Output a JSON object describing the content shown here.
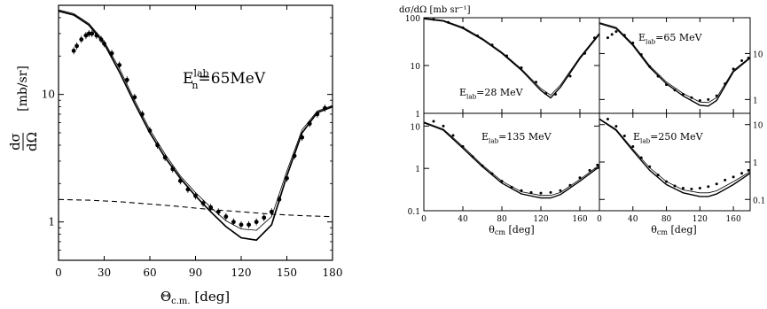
{
  "chart_data": [
    {
      "type": "scatter",
      "title": "",
      "annotation": {
        "e": "E",
        "sub": "n",
        "sup": "lab",
        "rest": "=65MeV"
      },
      "xlabel": {
        "theta": "Θ",
        "sub": "c.m.",
        "unit": "[deg]"
      },
      "ylabel": {
        "num": "dσ",
        "den": "dΩ",
        "unit": "[mb/sr]"
      },
      "xlim": [
        0,
        180
      ],
      "ylim": [
        0.5,
        50
      ],
      "yscale": "log",
      "xticks": [
        "0",
        "30",
        "60",
        "90",
        "120",
        "150",
        "180"
      ],
      "yticks": [
        {
          "v": 1,
          "label": "1"
        },
        {
          "v": 10,
          "label": "10"
        }
      ],
      "series": [
        {
          "style": "solid",
          "x": [
            0,
            10,
            20,
            30,
            40,
            50,
            60,
            70,
            80,
            90,
            100,
            110,
            120,
            130,
            140,
            150,
            160,
            170,
            180
          ],
          "y": [
            45,
            42,
            35,
            25,
            15,
            8.5,
            5,
            3.2,
            2.2,
            1.6,
            1.2,
            0.92,
            0.75,
            0.72,
            0.95,
            2.3,
            5,
            7.2,
            8
          ]
        },
        {
          "style": "thin",
          "x": [
            0,
            10,
            20,
            30,
            40,
            50,
            60,
            70,
            80,
            90,
            100,
            110,
            120,
            130,
            140,
            150,
            160,
            170,
            180
          ],
          "y": [
            46,
            43,
            36,
            26,
            16,
            9,
            5.3,
            3.4,
            2.3,
            1.7,
            1.3,
            1.02,
            0.88,
            0.86,
            1.1,
            2.5,
            5.3,
            7.4,
            8.2
          ]
        },
        {
          "style": "dashed",
          "x": [
            0,
            20,
            40,
            60,
            80,
            100,
            120,
            140,
            160,
            180
          ],
          "y": [
            1.5,
            1.48,
            1.44,
            1.38,
            1.32,
            1.25,
            1.2,
            1.15,
            1.12,
            1.1
          ]
        },
        {
          "style": "points",
          "x": [
            10,
            12,
            15,
            18,
            20,
            22,
            25,
            28,
            30,
            35,
            40,
            45,
            50,
            55,
            60,
            65,
            70,
            75,
            80,
            85,
            90,
            95,
            100,
            105,
            110,
            115,
            120,
            125,
            130,
            135,
            140,
            145,
            150,
            155,
            160,
            165,
            170,
            175
          ],
          "y": [
            22,
            24,
            27,
            29,
            30,
            30,
            29,
            27,
            25,
            21,
            17,
            13,
            9.5,
            7,
            5.2,
            4,
            3.2,
            2.6,
            2.1,
            1.8,
            1.6,
            1.4,
            1.3,
            1.2,
            1.1,
            1.0,
            0.95,
            0.95,
            1.0,
            1.08,
            1.2,
            1.5,
            2.2,
            3.3,
            4.6,
            5.9,
            7,
            7.8
          ]
        }
      ]
    },
    {
      "type": "scatter",
      "title": "dσ/dΩ [mb sr⁻¹]",
      "yscale": "log",
      "grid": false,
      "panels": [
        {
          "label": {
            "e": "E",
            "sub": "lab",
            "rest": "=28 MeV"
          },
          "position": "top-left",
          "xlim": [
            0,
            180
          ],
          "ylim": [
            1,
            100
          ],
          "yticks": [
            {
              "v": 1,
              "label": "1"
            },
            {
              "v": 10,
              "label": "10"
            },
            {
              "v": 100,
              "label": "100"
            }
          ],
          "series": [
            {
              "style": "solid",
              "x": [
                0,
                20,
                40,
                60,
                80,
                100,
                120,
                130,
                140,
                160,
                180
              ],
              "y": [
                95,
                85,
                60,
                35,
                18,
                8,
                3,
                2.1,
                3.5,
                14,
                45
              ]
            },
            {
              "style": "thin",
              "x": [
                0,
                20,
                40,
                60,
                80,
                100,
                120,
                130,
                140,
                160,
                180
              ],
              "y": [
                98,
                88,
                63,
                37,
                19,
                8.5,
                3.3,
                2.4,
                3.9,
                15,
                48
              ]
            },
            {
              "style": "points",
              "x": [
                10,
                25,
                40,
                55,
                70,
                85,
                100,
                115,
                125,
                135,
                150,
                165,
                175
              ],
              "y": [
                92,
                80,
                62,
                42,
                27,
                16,
                9,
                4.5,
                2.6,
                2.5,
                6,
                18,
                38
              ]
            }
          ]
        },
        {
          "label": {
            "e": "E",
            "sub": "lab",
            "rest": "=65 MeV"
          },
          "position": "top-right",
          "xlim": [
            0,
            180
          ],
          "ylim": [
            0.5,
            60
          ],
          "yticks": [
            {
              "v": 1,
              "label": "1"
            },
            {
              "v": 10,
              "label": "10"
            }
          ],
          "series": [
            {
              "style": "solid",
              "x": [
                0,
                20,
                40,
                60,
                80,
                100,
                120,
                130,
                140,
                160,
                180
              ],
              "y": [
                45,
                35,
                15,
                5,
                2.2,
                1.2,
                0.75,
                0.72,
                0.95,
                4,
                8
              ]
            },
            {
              "style": "thin",
              "x": [
                0,
                20,
                40,
                60,
                80,
                100,
                120,
                130,
                140,
                160,
                180
              ],
              "y": [
                47,
                37,
                16,
                5.4,
                2.4,
                1.35,
                0.88,
                0.86,
                1.1,
                4.3,
                8.3
              ]
            },
            {
              "style": "points",
              "x": [
                10,
                15,
                20,
                30,
                40,
                50,
                60,
                70,
                80,
                90,
                100,
                110,
                120,
                130,
                140,
                150,
                160,
                170,
                178
              ],
              "y": [
                22,
                26,
                30,
                25,
                17,
                9.5,
                5.2,
                3.2,
                2.1,
                1.6,
                1.3,
                1.1,
                0.95,
                1.0,
                1.2,
                2.2,
                4.6,
                7,
                8
              ]
            }
          ]
        },
        {
          "label": {
            "e": "E",
            "sub": "lab",
            "rest": "=135 MeV"
          },
          "position": "bottom-left",
          "xlim": [
            0,
            180
          ],
          "ylim": [
            0.1,
            20
          ],
          "yticks": [
            {
              "v": 0.1,
              "label": "0.1"
            },
            {
              "v": 1,
              "label": "1"
            },
            {
              "v": 10,
              "label": "10"
            }
          ],
          "series": [
            {
              "style": "solid",
              "x": [
                0,
                20,
                40,
                60,
                80,
                100,
                120,
                130,
                140,
                160,
                180
              ],
              "y": [
                12,
                8,
                3,
                1.1,
                0.45,
                0.25,
                0.2,
                0.2,
                0.24,
                0.5,
                1.1
              ]
            },
            {
              "style": "thin",
              "x": [
                0,
                20,
                40,
                60,
                80,
                100,
                120,
                130,
                140,
                160,
                180
              ],
              "y": [
                12.5,
                8.5,
                3.3,
                1.2,
                0.5,
                0.28,
                0.23,
                0.23,
                0.27,
                0.55,
                1.2
              ]
            },
            {
              "style": "points",
              "x": [
                10,
                20,
                30,
                40,
                50,
                60,
                70,
                80,
                90,
                100,
                110,
                120,
                130,
                140,
                150,
                160,
                170,
                178
              ],
              "y": [
                13,
                10,
                6,
                3.3,
                1.9,
                1.15,
                0.75,
                0.5,
                0.36,
                0.3,
                0.27,
                0.26,
                0.27,
                0.3,
                0.4,
                0.6,
                0.9,
                1.2
              ]
            }
          ]
        },
        {
          "label": {
            "e": "E",
            "sub": "lab",
            "rest": "=250 MeV"
          },
          "position": "bottom-right",
          "xlim": [
            0,
            180
          ],
          "ylim": [
            0.05,
            20
          ],
          "yticks": [
            {
              "v": 0.1,
              "label": "0.1"
            },
            {
              "v": 1,
              "label": "1"
            },
            {
              "v": 10,
              "label": "10"
            }
          ],
          "series": [
            {
              "style": "solid",
              "x": [
                0,
                20,
                40,
                60,
                80,
                100,
                120,
                130,
                140,
                160,
                180
              ],
              "y": [
                14,
                7,
                2,
                0.6,
                0.25,
                0.15,
                0.12,
                0.12,
                0.14,
                0.25,
                0.5
              ]
            },
            {
              "style": "thin",
              "x": [
                0,
                20,
                40,
                60,
                80,
                100,
                120,
                130,
                140,
                160,
                180
              ],
              "y": [
                14.5,
                7.5,
                2.2,
                0.7,
                0.3,
                0.18,
                0.15,
                0.15,
                0.17,
                0.3,
                0.55
              ]
            },
            {
              "style": "points",
              "x": [
                10,
                20,
                30,
                40,
                50,
                60,
                70,
                80,
                90,
                100,
                110,
                120,
                130,
                140,
                150,
                160,
                170,
                178
              ],
              "y": [
                14,
                9,
                5,
                2.6,
                1.3,
                0.75,
                0.45,
                0.3,
                0.23,
                0.2,
                0.19,
                0.2,
                0.22,
                0.26,
                0.33,
                0.4,
                0.5,
                0.6
              ]
            }
          ]
        }
      ],
      "xticks": [
        "0",
        "40",
        "80",
        "120",
        "160"
      ],
      "xlabel": {
        "theta": "θ",
        "sub": "cm",
        "unit": "[deg]"
      }
    }
  ]
}
